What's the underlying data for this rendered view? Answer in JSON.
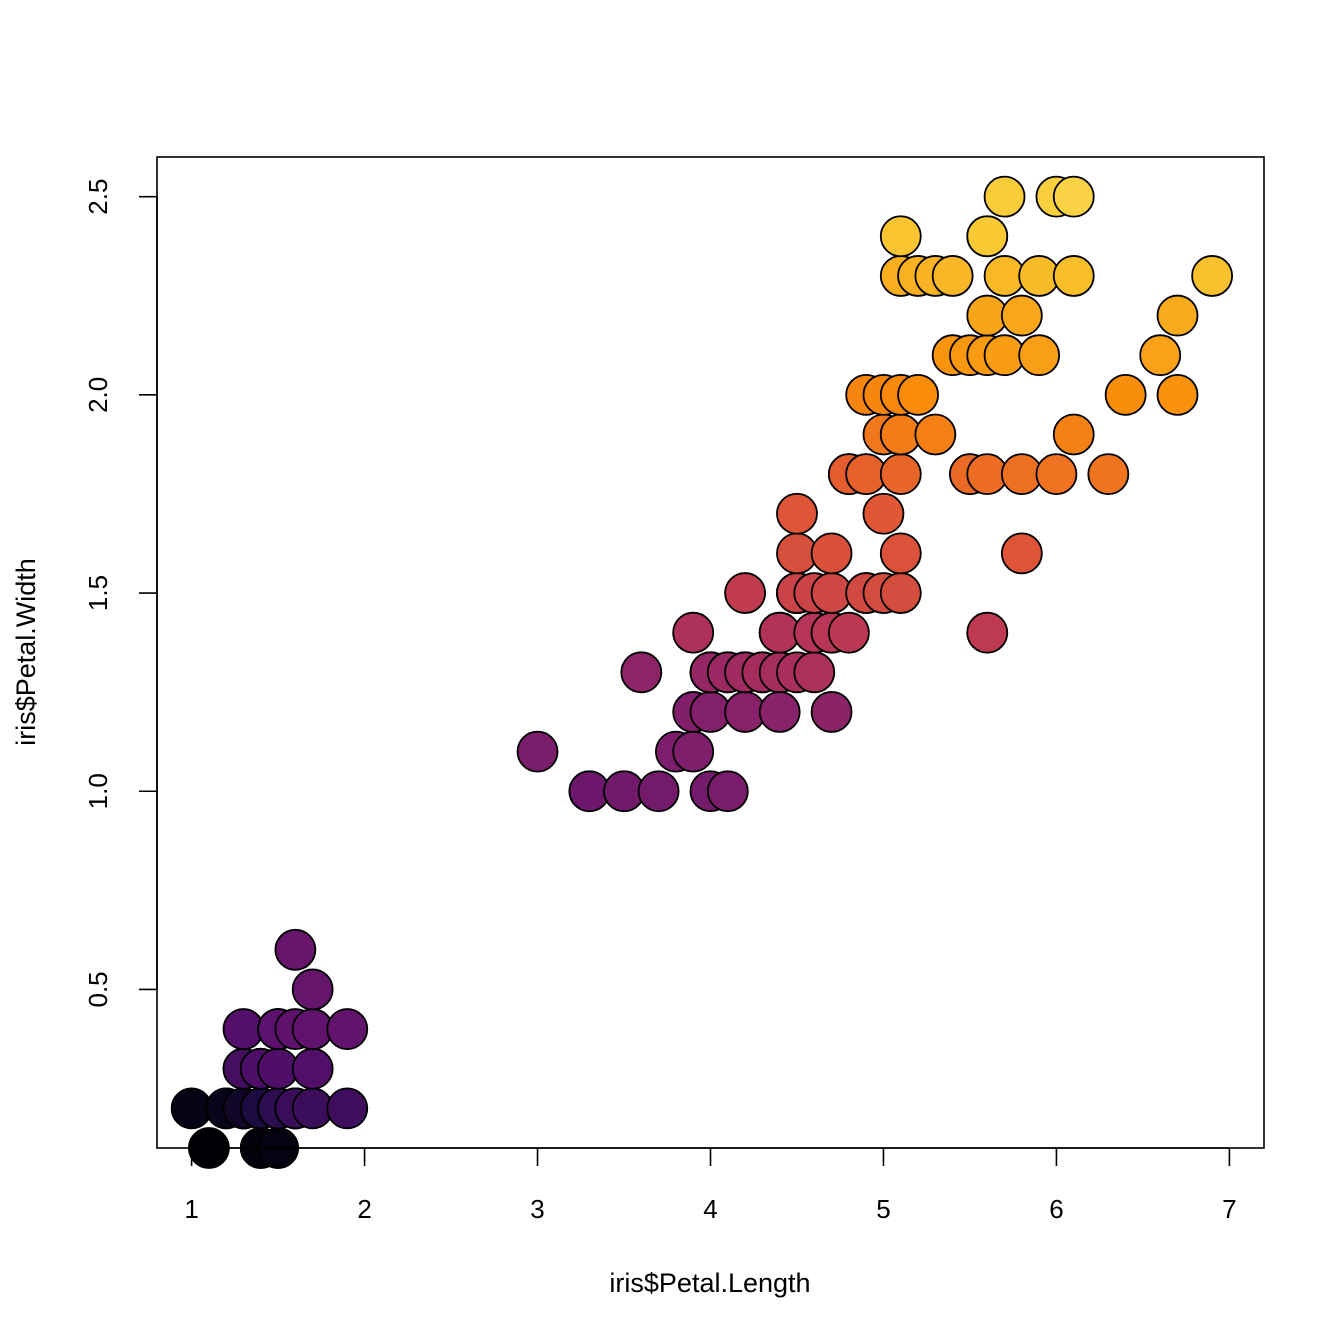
{
  "chart_data": {
    "type": "scatter",
    "title": "",
    "xlabel": "iris$Petal.Length",
    "ylabel": "iris$Petal.Width",
    "xlim": [
      0.8,
      7.2
    ],
    "ylim": [
      0.1,
      2.6
    ],
    "xticks": [
      "1",
      "2",
      "3",
      "4",
      "5",
      "6",
      "7"
    ],
    "yticks": [
      "0.5",
      "1.0",
      "1.5",
      "2.0",
      "2.5"
    ],
    "grid": false,
    "legend": "none",
    "marker": "filled circle, black outline",
    "color_scale": "inferno (ordered by Petal.Width)",
    "points": [
      {
        "x": 1.4,
        "y": 0.2
      },
      {
        "x": 1.4,
        "y": 0.2
      },
      {
        "x": 1.3,
        "y": 0.2
      },
      {
        "x": 1.5,
        "y": 0.2
      },
      {
        "x": 1.4,
        "y": 0.2
      },
      {
        "x": 1.7,
        "y": 0.4
      },
      {
        "x": 1.4,
        "y": 0.3
      },
      {
        "x": 1.5,
        "y": 0.2
      },
      {
        "x": 1.4,
        "y": 0.2
      },
      {
        "x": 1.5,
        "y": 0.1
      },
      {
        "x": 1.5,
        "y": 0.2
      },
      {
        "x": 1.6,
        "y": 0.2
      },
      {
        "x": 1.4,
        "y": 0.1
      },
      {
        "x": 1.1,
        "y": 0.1
      },
      {
        "x": 1.2,
        "y": 0.2
      },
      {
        "x": 1.5,
        "y": 0.4
      },
      {
        "x": 1.3,
        "y": 0.4
      },
      {
        "x": 1.4,
        "y": 0.3
      },
      {
        "x": 1.7,
        "y": 0.3
      },
      {
        "x": 1.5,
        "y": 0.3
      },
      {
        "x": 1.7,
        "y": 0.2
      },
      {
        "x": 1.5,
        "y": 0.4
      },
      {
        "x": 1.0,
        "y": 0.2
      },
      {
        "x": 1.7,
        "y": 0.5
      },
      {
        "x": 1.9,
        "y": 0.2
      },
      {
        "x": 1.6,
        "y": 0.2
      },
      {
        "x": 1.6,
        "y": 0.4
      },
      {
        "x": 1.5,
        "y": 0.2
      },
      {
        "x": 1.4,
        "y": 0.2
      },
      {
        "x": 1.6,
        "y": 0.2
      },
      {
        "x": 1.6,
        "y": 0.2
      },
      {
        "x": 1.5,
        "y": 0.4
      },
      {
        "x": 1.5,
        "y": 0.1
      },
      {
        "x": 1.4,
        "y": 0.2
      },
      {
        "x": 1.5,
        "y": 0.2
      },
      {
        "x": 1.2,
        "y": 0.2
      },
      {
        "x": 1.3,
        "y": 0.2
      },
      {
        "x": 1.4,
        "y": 0.1
      },
      {
        "x": 1.3,
        "y": 0.2
      },
      {
        "x": 1.5,
        "y": 0.2
      },
      {
        "x": 1.3,
        "y": 0.3
      },
      {
        "x": 1.3,
        "y": 0.3
      },
      {
        "x": 1.3,
        "y": 0.2
      },
      {
        "x": 1.6,
        "y": 0.6
      },
      {
        "x": 1.9,
        "y": 0.4
      },
      {
        "x": 1.4,
        "y": 0.3
      },
      {
        "x": 1.6,
        "y": 0.2
      },
      {
        "x": 1.4,
        "y": 0.2
      },
      {
        "x": 1.5,
        "y": 0.2
      },
      {
        "x": 1.4,
        "y": 0.2
      },
      {
        "x": 4.7,
        "y": 1.4
      },
      {
        "x": 4.5,
        "y": 1.5
      },
      {
        "x": 4.9,
        "y": 1.5
      },
      {
        "x": 4.0,
        "y": 1.3
      },
      {
        "x": 4.6,
        "y": 1.5
      },
      {
        "x": 4.5,
        "y": 1.3
      },
      {
        "x": 4.7,
        "y": 1.6
      },
      {
        "x": 3.3,
        "y": 1.0
      },
      {
        "x": 4.6,
        "y": 1.3
      },
      {
        "x": 3.9,
        "y": 1.4
      },
      {
        "x": 3.5,
        "y": 1.0
      },
      {
        "x": 4.2,
        "y": 1.5
      },
      {
        "x": 4.0,
        "y": 1.0
      },
      {
        "x": 4.7,
        "y": 1.4
      },
      {
        "x": 3.6,
        "y": 1.3
      },
      {
        "x": 4.4,
        "y": 1.4
      },
      {
        "x": 4.5,
        "y": 1.5
      },
      {
        "x": 4.1,
        "y": 1.0
      },
      {
        "x": 4.5,
        "y": 1.5
      },
      {
        "x": 3.9,
        "y": 1.1
      },
      {
        "x": 4.8,
        "y": 1.8
      },
      {
        "x": 4.0,
        "y": 1.3
      },
      {
        "x": 4.9,
        "y": 1.5
      },
      {
        "x": 4.7,
        "y": 1.2
      },
      {
        "x": 4.3,
        "y": 1.3
      },
      {
        "x": 4.4,
        "y": 1.4
      },
      {
        "x": 4.8,
        "y": 1.4
      },
      {
        "x": 5.0,
        "y": 1.7
      },
      {
        "x": 4.5,
        "y": 1.5
      },
      {
        "x": 3.5,
        "y": 1.0
      },
      {
        "x": 3.8,
        "y": 1.1
      },
      {
        "x": 3.7,
        "y": 1.0
      },
      {
        "x": 3.9,
        "y": 1.2
      },
      {
        "x": 5.1,
        "y": 1.6
      },
      {
        "x": 4.5,
        "y": 1.5
      },
      {
        "x": 4.5,
        "y": 1.6
      },
      {
        "x": 4.7,
        "y": 1.5
      },
      {
        "x": 4.4,
        "y": 1.3
      },
      {
        "x": 4.1,
        "y": 1.3
      },
      {
        "x": 4.0,
        "y": 1.3
      },
      {
        "x": 4.4,
        "y": 1.2
      },
      {
        "x": 4.6,
        "y": 1.4
      },
      {
        "x": 4.0,
        "y": 1.2
      },
      {
        "x": 3.3,
        "y": 1.0
      },
      {
        "x": 4.2,
        "y": 1.3
      },
      {
        "x": 4.2,
        "y": 1.2
      },
      {
        "x": 4.2,
        "y": 1.3
      },
      {
        "x": 4.3,
        "y": 1.3
      },
      {
        "x": 3.0,
        "y": 1.1
      },
      {
        "x": 4.1,
        "y": 1.3
      },
      {
        "x": 6.0,
        "y": 2.5
      },
      {
        "x": 5.1,
        "y": 1.9
      },
      {
        "x": 5.9,
        "y": 2.1
      },
      {
        "x": 5.6,
        "y": 1.8
      },
      {
        "x": 5.8,
        "y": 2.2
      },
      {
        "x": 6.6,
        "y": 2.1
      },
      {
        "x": 4.5,
        "y": 1.7
      },
      {
        "x": 6.3,
        "y": 1.8
      },
      {
        "x": 5.8,
        "y": 1.8
      },
      {
        "x": 6.1,
        "y": 2.5
      },
      {
        "x": 5.1,
        "y": 2.0
      },
      {
        "x": 5.3,
        "y": 1.9
      },
      {
        "x": 5.5,
        "y": 2.1
      },
      {
        "x": 5.0,
        "y": 2.0
      },
      {
        "x": 5.1,
        "y": 2.4
      },
      {
        "x": 5.3,
        "y": 2.3
      },
      {
        "x": 5.5,
        "y": 1.8
      },
      {
        "x": 6.7,
        "y": 2.2
      },
      {
        "x": 6.9,
        "y": 2.3
      },
      {
        "x": 5.0,
        "y": 1.5
      },
      {
        "x": 5.7,
        "y": 2.3
      },
      {
        "x": 4.9,
        "y": 2.0
      },
      {
        "x": 6.7,
        "y": 2.0
      },
      {
        "x": 4.9,
        "y": 1.8
      },
      {
        "x": 5.7,
        "y": 2.1
      },
      {
        "x": 6.0,
        "y": 1.8
      },
      {
        "x": 4.8,
        "y": 1.8
      },
      {
        "x": 4.9,
        "y": 1.8
      },
      {
        "x": 5.6,
        "y": 2.1
      },
      {
        "x": 5.8,
        "y": 1.6
      },
      {
        "x": 6.1,
        "y": 1.9
      },
      {
        "x": 6.4,
        "y": 2.0
      },
      {
        "x": 5.6,
        "y": 2.2
      },
      {
        "x": 5.1,
        "y": 1.5
      },
      {
        "x": 5.6,
        "y": 1.4
      },
      {
        "x": 6.1,
        "y": 2.3
      },
      {
        "x": 5.6,
        "y": 2.4
      },
      {
        "x": 5.5,
        "y": 1.8
      },
      {
        "x": 4.8,
        "y": 1.8
      },
      {
        "x": 5.4,
        "y": 2.1
      },
      {
        "x": 5.6,
        "y": 2.4
      },
      {
        "x": 5.1,
        "y": 2.3
      },
      {
        "x": 5.1,
        "y": 1.9
      },
      {
        "x": 5.9,
        "y": 2.3
      },
      {
        "x": 5.7,
        "y": 2.5
      },
      {
        "x": 5.2,
        "y": 2.3
      },
      {
        "x": 5.0,
        "y": 1.9
      },
      {
        "x": 5.2,
        "y": 2.0
      },
      {
        "x": 5.4,
        "y": 2.3
      },
      {
        "x": 5.1,
        "y": 1.8
      }
    ]
  }
}
